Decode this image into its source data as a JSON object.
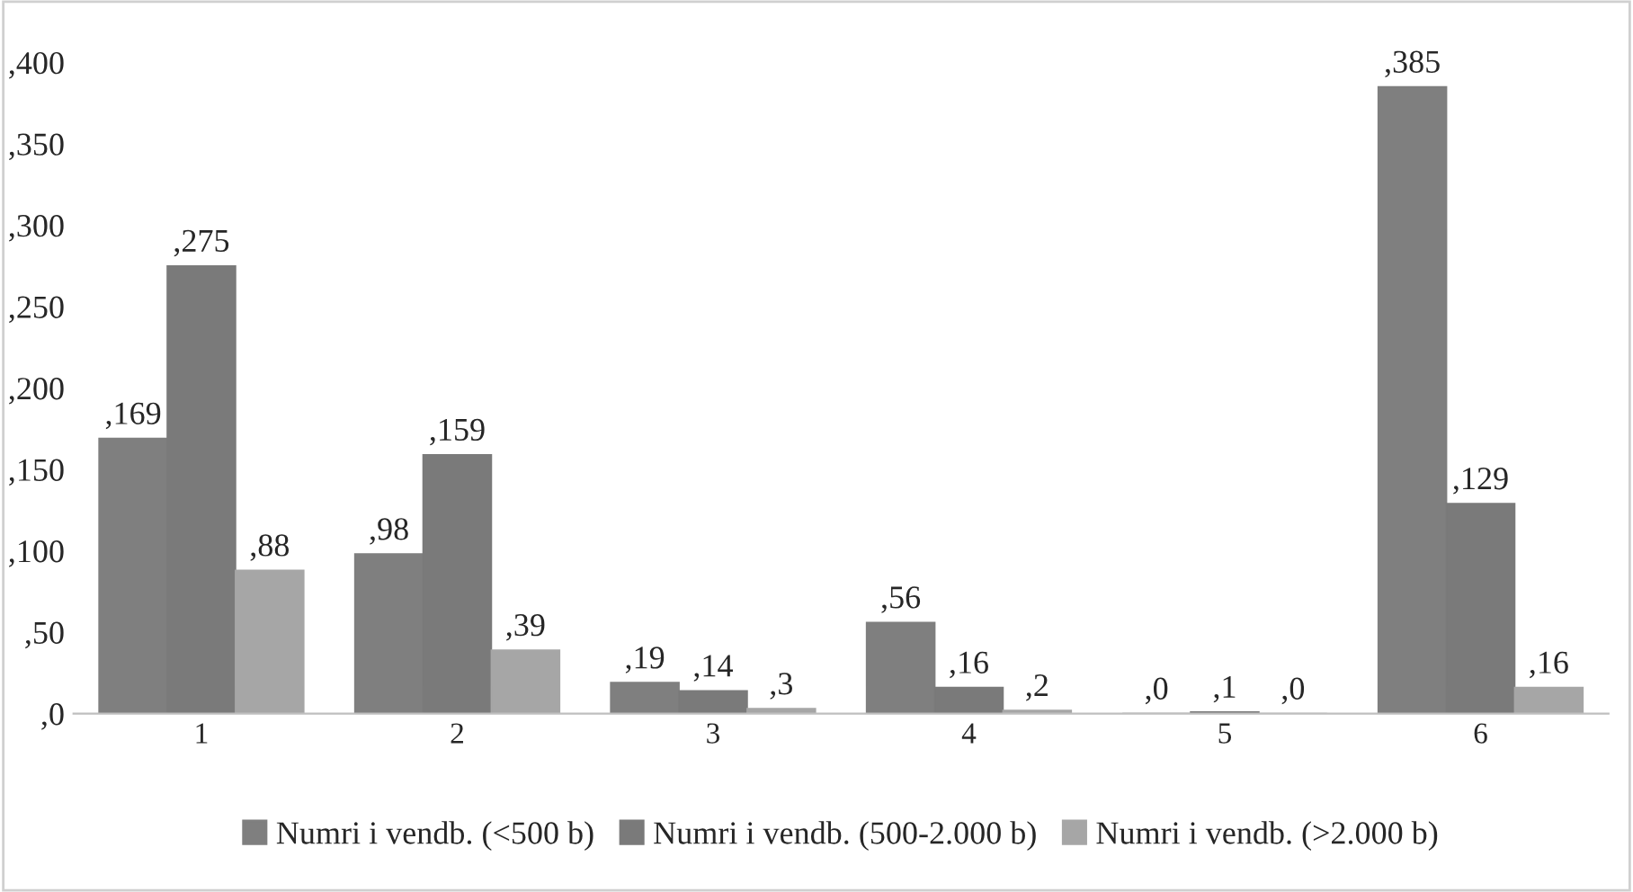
{
  "chart_data": {
    "type": "bar",
    "categories": [
      "1",
      "2",
      "3",
      "4",
      "5",
      "6"
    ],
    "series": [
      {
        "name": "Numri i vendb. (<500 b)",
        "color": "#7f7f7f",
        "values": [
          169,
          98,
          19,
          56,
          0,
          385
        ],
        "value_labels": [
          ",169",
          ",98",
          ",19",
          ",56",
          ",0",
          ",385"
        ]
      },
      {
        "name": "Numri i vendb. (500-2.000 b)",
        "color": "#7a7a7a",
        "values": [
          275,
          159,
          14,
          16,
          1,
          129
        ],
        "value_labels": [
          ",275",
          ",159",
          ",14",
          ",16",
          ",1",
          ",129"
        ]
      },
      {
        "name": "Numri i vendb. (>2.000 b)",
        "color": "#a6a6a6",
        "values": [
          88,
          39,
          3,
          2,
          0,
          16
        ],
        "value_labels": [
          ",88",
          ",39",
          ",3",
          ",2",
          ",0",
          ",16"
        ]
      }
    ],
    "ylim": [
      0,
      400
    ],
    "yticks": [
      {
        "value": 0,
        "label": ",0"
      },
      {
        "value": 50,
        "label": ",50"
      },
      {
        "value": 100,
        "label": ",100"
      },
      {
        "value": 150,
        "label": ",150"
      },
      {
        "value": 200,
        "label": ",200"
      },
      {
        "value": 250,
        "label": ",250"
      },
      {
        "value": 300,
        "label": ",300"
      },
      {
        "value": 350,
        "label": ",350"
      },
      {
        "value": 400,
        "label": ",400"
      }
    ],
    "grid": false,
    "legend": "bottom"
  }
}
